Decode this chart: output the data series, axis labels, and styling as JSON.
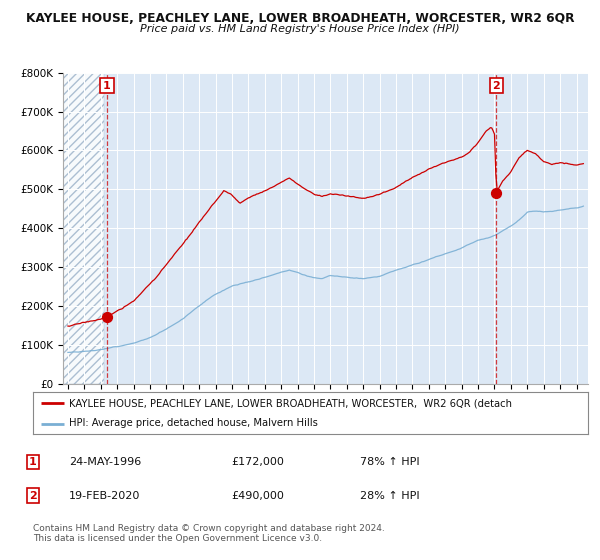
{
  "title": "KAYLEE HOUSE, PEACHLEY LANE, LOWER BROADHEATH, WORCESTER, WR2 6QR",
  "subtitle": "Price paid vs. HM Land Registry's House Price Index (HPI)",
  "background_color": "#ffffff",
  "plot_bg_color": "#dce8f5",
  "red_line_color": "#cc0000",
  "blue_line_color": "#7aafd4",
  "sale1_date_num": 1996.38,
  "sale1_price": 172000,
  "sale2_date_num": 2020.12,
  "sale2_price": 490000,
  "legend_red": "KAYLEE HOUSE, PEACHLEY LANE, LOWER BROADHEATH, WORCESTER,  WR2 6QR (detach",
  "legend_blue": "HPI: Average price, detached house, Malvern Hills",
  "footer": "Contains HM Land Registry data © Crown copyright and database right 2024.\nThis data is licensed under the Open Government Licence v3.0.",
  "xmin": 1993.7,
  "xmax": 2025.7,
  "ymin": 0,
  "ymax": 800000,
  "hatch_end": 1996.2
}
